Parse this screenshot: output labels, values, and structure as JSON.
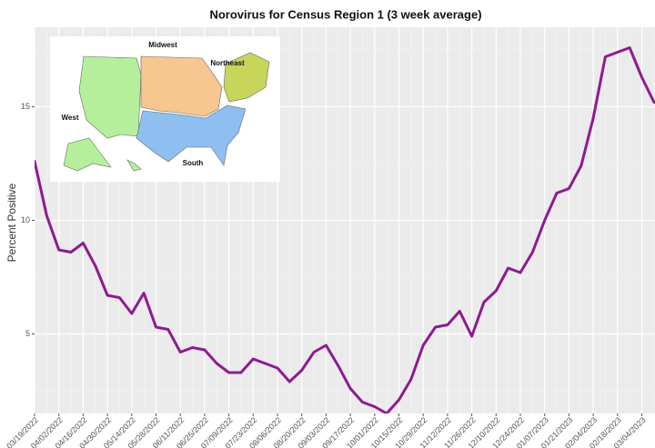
{
  "chart_data": {
    "type": "line",
    "title": "Norovirus for Census Region 1 (3 week average)",
    "y_label": "Percent Positive",
    "categories": [
      "03/19/2022",
      null,
      "04/02/2022",
      null,
      "04/16/2022",
      null,
      "04/30/2022",
      null,
      "05/14/2022",
      null,
      "05/28/2022",
      null,
      "06/11/2022",
      null,
      "06/25/2022",
      null,
      "07/09/2022",
      null,
      "07/23/2022",
      null,
      "08/06/2022",
      null,
      "08/20/2022",
      null,
      "09/03/2022",
      null,
      "09/17/2022",
      null,
      "10/01/2022",
      null,
      "10/15/2022",
      null,
      "10/29/2022",
      null,
      "11/12/2022",
      null,
      "11/26/2022",
      null,
      "12/10/2022",
      null,
      "12/24/2022",
      null,
      "01/07/2023",
      null,
      "01/21/2023",
      null,
      "02/04/2023",
      null,
      "02/18/2023",
      null,
      "03/04/2023",
      null
    ],
    "series": [
      {
        "name": "Region 1",
        "color": "#8e1b91",
        "values": [
          12.6,
          10.2,
          8.7,
          8.6,
          9.0,
          8.0,
          6.7,
          6.6,
          5.9,
          6.8,
          5.3,
          5.2,
          4.2,
          4.4,
          4.3,
          3.7,
          3.3,
          3.3,
          3.9,
          3.7,
          3.5,
          2.9,
          3.4,
          4.2,
          4.5,
          3.6,
          2.6,
          2.0,
          1.8,
          1.5,
          2.1,
          3.0,
          4.5,
          5.3,
          5.4,
          6.0,
          4.9,
          6.4,
          6.9,
          7.9,
          7.7,
          8.6,
          10.0,
          11.2,
          11.4,
          12.4,
          14.5,
          17.2,
          17.4,
          17.6,
          16.3,
          15.2
        ]
      }
    ],
    "ylim": [
      1.5,
      18.5
    ],
    "yticks": [
      5,
      10,
      15
    ],
    "grid": true,
    "annotations": [
      "Midwest",
      "Northeast",
      "West",
      "South"
    ]
  }
}
